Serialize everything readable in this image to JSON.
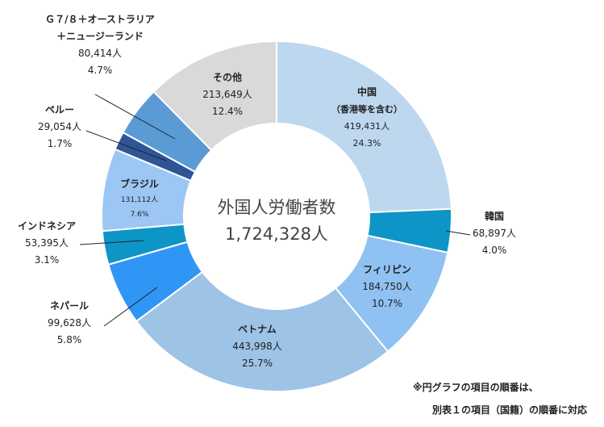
{
  "chart_data": {
    "type": "pie",
    "variant": "donut",
    "center_label": "外国人労働者数",
    "total": "1,724,328人",
    "slices": [
      {
        "label": "中国",
        "sublabel": "（香港等を含む）",
        "count": "419,431人",
        "value": 419431,
        "percent": "24.3%",
        "color": "#bdd7ee"
      },
      {
        "label": "韓国",
        "sublabel": "",
        "count": "68,897人",
        "value": 68897,
        "percent": "4.0%",
        "color": "#0e95c8"
      },
      {
        "label": "フィリピン",
        "sublabel": "",
        "count": "184,750人",
        "value": 184750,
        "percent": "10.7%",
        "color": "#8fc2f2"
      },
      {
        "label": "ベトナム",
        "sublabel": "",
        "count": "443,998人",
        "value": 443998,
        "percent": "25.7%",
        "color": "#9dc3e6"
      },
      {
        "label": "ネパール",
        "sublabel": "",
        "count": "99,628人",
        "value": 99628,
        "percent": "5.8%",
        "color": "#2f96f5"
      },
      {
        "label": "インドネシア",
        "sublabel": "",
        "count": "53,395人",
        "value": 53395,
        "percent": "3.1%",
        "color": "#0e95c8"
      },
      {
        "label": "ブラジル",
        "sublabel": "",
        "count": "131,112人",
        "value": 131112,
        "percent": "7.6%",
        "color": "#9cc7f4"
      },
      {
        "label": "ペルー",
        "sublabel": "",
        "count": "29,054人",
        "value": 29054,
        "percent": "1.7%",
        "color": "#2f5597"
      },
      {
        "label": "Ｇ７/８＋オーストラリア",
        "sublabel": "＋ニュージーランド",
        "count": "80,414人",
        "value": 80414,
        "percent": "4.7%",
        "color": "#5b9bd5"
      },
      {
        "label": "その他",
        "sublabel": "",
        "count": "213,649人",
        "value": 213649,
        "percent": "12.4%",
        "color": "#d9d9d9"
      }
    ]
  },
  "note": {
    "line1": "※円グラフの項目の順番は、",
    "line2": "別表１の項目（国籍）の順番に対応"
  }
}
